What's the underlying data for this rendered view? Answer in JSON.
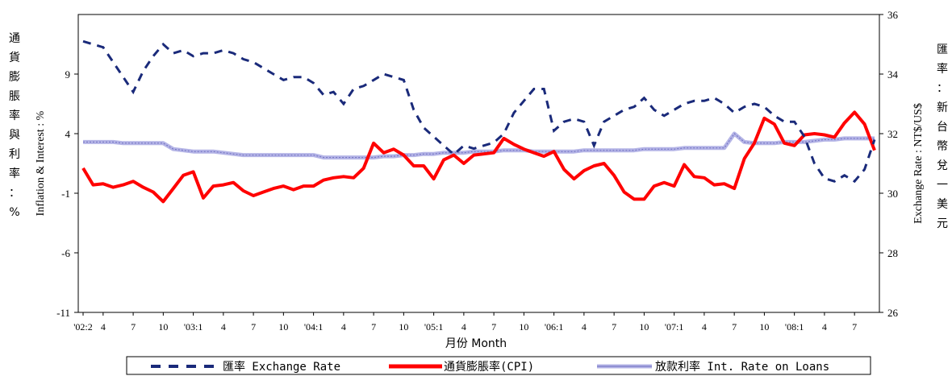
{
  "chart_data": {
    "type": "line",
    "xlabel": "月份 Month",
    "ylabel_left": "Inflation & Interest : %",
    "ylabel_left_cjk": "通貨膨脹率與利率：%",
    "ylabel_right": "Exchange Rate : NT$/US$",
    "ylabel_right_cjk": "匯率：新台幣兌一美元",
    "ylim_left": [
      -11,
      14
    ],
    "yticks_left": [
      -11,
      -6,
      -1,
      4,
      9
    ],
    "ylim_right": [
      26,
      36
    ],
    "yticks_right": [
      26,
      28,
      30,
      32,
      34,
      36
    ],
    "xtick_labels": [
      "'02:2",
      "4",
      "7",
      "10",
      "'03:1",
      "4",
      "7",
      "10",
      "'04:1",
      "4",
      "7",
      "10",
      "'05:1",
      "4",
      "7",
      "10",
      "'06:1",
      "4",
      "7",
      "10",
      "'07:1",
      "4",
      "7",
      "10",
      "'08:1",
      "4",
      "7"
    ],
    "x": [
      "2002-02",
      "2002-03",
      "2002-04",
      "2002-05",
      "2002-06",
      "2002-07",
      "2002-08",
      "2002-09",
      "2002-10",
      "2002-11",
      "2002-12",
      "2003-01",
      "2003-02",
      "2003-03",
      "2003-04",
      "2003-05",
      "2003-06",
      "2003-07",
      "2003-08",
      "2003-09",
      "2003-10",
      "2003-11",
      "2003-12",
      "2004-01",
      "2004-02",
      "2004-03",
      "2004-04",
      "2004-05",
      "2004-06",
      "2004-07",
      "2004-08",
      "2004-09",
      "2004-10",
      "2004-11",
      "2004-12",
      "2005-01",
      "2005-02",
      "2005-03",
      "2005-04",
      "2005-05",
      "2005-06",
      "2005-07",
      "2005-08",
      "2005-09",
      "2005-10",
      "2005-11",
      "2005-12",
      "2006-01",
      "2006-02",
      "2006-03",
      "2006-04",
      "2006-05",
      "2006-06",
      "2006-07",
      "2006-08",
      "2006-09",
      "2006-10",
      "2006-11",
      "2006-12",
      "2007-01",
      "2007-02",
      "2007-03",
      "2007-04",
      "2007-05",
      "2007-06",
      "2007-07",
      "2007-08",
      "2007-09",
      "2007-10",
      "2007-11",
      "2007-12",
      "2008-01",
      "2008-02",
      "2008-03",
      "2008-04",
      "2008-05",
      "2008-06",
      "2008-07",
      "2008-08",
      "2008-09"
    ],
    "series": [
      {
        "name": "匯率 Exchange Rate",
        "axis": "right",
        "color": "#1a2a7a",
        "style": "dashed",
        "values": [
          35.1,
          35.0,
          34.9,
          34.4,
          33.9,
          33.4,
          34.1,
          34.6,
          35.0,
          34.7,
          34.8,
          34.6,
          34.7,
          34.7,
          34.8,
          34.7,
          34.5,
          34.4,
          34.2,
          34.0,
          33.8,
          33.9,
          33.9,
          33.7,
          33.3,
          33.4,
          33.0,
          33.5,
          33.6,
          33.8,
          34.0,
          33.9,
          33.8,
          32.8,
          32.2,
          31.9,
          31.6,
          31.3,
          31.6,
          31.5,
          31.6,
          31.7,
          32.0,
          32.7,
          33.1,
          33.5,
          33.5,
          32.1,
          32.4,
          32.5,
          32.4,
          31.6,
          32.4,
          32.6,
          32.8,
          32.9,
          33.2,
          32.8,
          32.6,
          32.8,
          33.0,
          33.1,
          33.1,
          33.2,
          33.0,
          32.7,
          32.9,
          33.0,
          32.9,
          32.6,
          32.4,
          32.4,
          31.9,
          31.0,
          30.5,
          30.4,
          30.6,
          30.4,
          30.8,
          31.8
        ]
      },
      {
        "name": "通貨膨脹率(CPI)",
        "axis": "left",
        "color": "#ff0000",
        "style": "solid",
        "values": [
          1.1,
          -0.3,
          -0.2,
          -0.5,
          -0.3,
          0.0,
          -0.5,
          -0.9,
          -1.7,
          -0.6,
          0.5,
          0.8,
          -1.4,
          -0.4,
          -0.3,
          -0.1,
          -0.8,
          -1.2,
          -0.9,
          -0.6,
          -0.4,
          -0.7,
          -0.4,
          -0.4,
          0.1,
          0.3,
          0.4,
          0.3,
          1.1,
          3.2,
          2.4,
          2.7,
          2.2,
          1.3,
          1.3,
          0.2,
          1.8,
          2.2,
          1.5,
          2.2,
          2.3,
          2.4,
          3.6,
          3.1,
          2.7,
          2.4,
          2.1,
          2.5,
          1.0,
          0.2,
          0.9,
          1.3,
          1.5,
          0.5,
          -0.9,
          -1.5,
          -1.5,
          -0.4,
          -0.1,
          -0.4,
          1.4,
          0.4,
          0.3,
          -0.3,
          -0.2,
          -0.6,
          1.9,
          3.2,
          5.3,
          4.8,
          3.2,
          3.0,
          3.9,
          4.0,
          3.9,
          3.7,
          4.9,
          5.8,
          4.8,
          2.6
        ]
      },
      {
        "name": "放款利率 Int. Rate on Loans",
        "axis": "left",
        "color": "#b4b4e6",
        "style": "solid",
        "values": [
          3.3,
          3.3,
          3.3,
          3.3,
          3.2,
          3.2,
          3.2,
          3.2,
          3.2,
          2.7,
          2.6,
          2.5,
          2.5,
          2.5,
          2.4,
          2.3,
          2.2,
          2.2,
          2.2,
          2.2,
          2.2,
          2.2,
          2.2,
          2.2,
          2.0,
          2.0,
          2.0,
          2.0,
          2.0,
          2.0,
          2.1,
          2.1,
          2.2,
          2.2,
          2.3,
          2.3,
          2.4,
          2.4,
          2.4,
          2.5,
          2.5,
          2.5,
          2.6,
          2.6,
          2.6,
          2.5,
          2.5,
          2.5,
          2.5,
          2.5,
          2.6,
          2.6,
          2.6,
          2.6,
          2.6,
          2.6,
          2.7,
          2.7,
          2.7,
          2.7,
          2.8,
          2.8,
          2.8,
          2.8,
          2.8,
          4.0,
          3.3,
          3.2,
          3.2,
          3.2,
          3.3,
          3.3,
          3.3,
          3.4,
          3.5,
          3.5,
          3.6,
          3.6,
          3.6,
          3.6
        ]
      }
    ]
  }
}
